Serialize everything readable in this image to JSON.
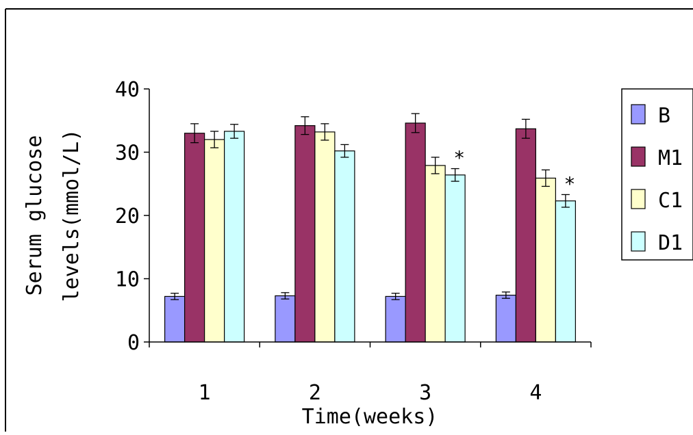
{
  "chart_data": {
    "type": "bar",
    "title": "",
    "xlabel": "Time(weeks)",
    "ylabel_lines": [
      "Serum glucose",
      "levels(mmol/L)"
    ],
    "ylim": [
      0,
      40
    ],
    "yticks": [
      "0",
      "10",
      "20",
      "30",
      "40"
    ],
    "ytick_values": [
      0,
      10,
      20,
      30,
      40
    ],
    "categories": [
      "1",
      "2",
      "3",
      "4"
    ],
    "legend_position": "right",
    "grid": false,
    "series": [
      {
        "name": "B",
        "color": "#9999FF",
        "values": [
          7.2,
          7.3,
          7.2,
          7.4
        ],
        "errors": [
          0.5,
          0.5,
          0.5,
          0.5
        ]
      },
      {
        "name": "M1",
        "color": "#993366",
        "values": [
          33.0,
          34.2,
          34.6,
          33.7
        ],
        "errors": [
          1.5,
          1.4,
          1.5,
          1.5
        ]
      },
      {
        "name": "C1",
        "color": "#FFFFCC",
        "values": [
          32.0,
          33.2,
          27.9,
          25.9
        ],
        "errors": [
          1.3,
          1.3,
          1.3,
          1.3
        ]
      },
      {
        "name": "D1",
        "color": "#CCFFFF",
        "values": [
          33.3,
          30.2,
          26.4,
          22.3
        ],
        "errors": [
          1.1,
          1.0,
          1.0,
          1.0
        ]
      }
    ],
    "annotations": [
      {
        "text": "*",
        "series_index": 3,
        "category_index": 2
      },
      {
        "text": "*",
        "series_index": 3,
        "category_index": 3
      }
    ]
  }
}
